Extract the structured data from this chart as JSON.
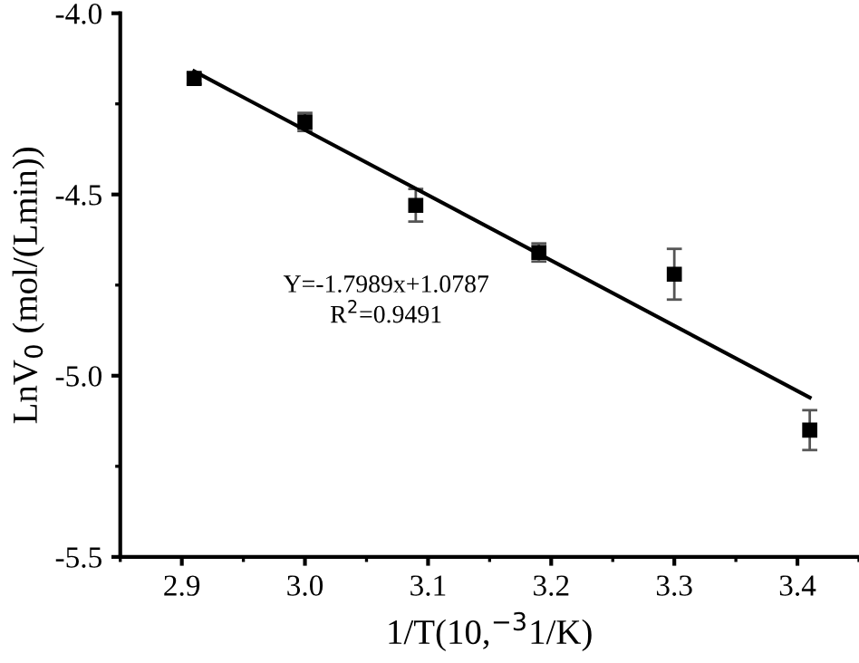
{
  "chart_data": {
    "type": "scatter",
    "xlabel": "1/T(10,$^{−3}$1/K)",
    "ylabel": "LnV$_{0}$ (mol/(Lmin))",
    "x": [
      2.91,
      3.0,
      3.09,
      3.19,
      3.3,
      3.41
    ],
    "series": [
      {
        "color": "#000000",
        "values": [
          -4.18,
          -4.3,
          -4.53,
          -4.66,
          -4.72,
          -5.15
        ],
        "errors": [
          0.015,
          0.025,
          0.045,
          0.025,
          0.07,
          0.055
        ],
        "marker": "square"
      },
      {
        "type": "line",
        "color": "#000000",
        "x": [
          2.91,
          3.41
        ],
        "values": [
          -4.16,
          -5.06
        ],
        "line_style": "solid"
      }
    ],
    "annotations": [
      "Y=-1.7989x+1.0787\nR$^{2}$=0.9491"
    ],
    "xlim": [
      2.85,
      3.45
    ],
    "ylim": [
      -5.5,
      -4.0
    ],
    "xticks": [
      2.9,
      {
        "value": 3,
        "label": "3.0"
      },
      3.1,
      3.2,
      3.3,
      3.4
    ],
    "yticks": [
      -5.5,
      {
        "value": -5,
        "label": "-5.0"
      },
      -4.5,
      {
        "value": -4,
        "label": "-4.0"
      }
    ],
    "grid": false,
    "legend": false
  }
}
